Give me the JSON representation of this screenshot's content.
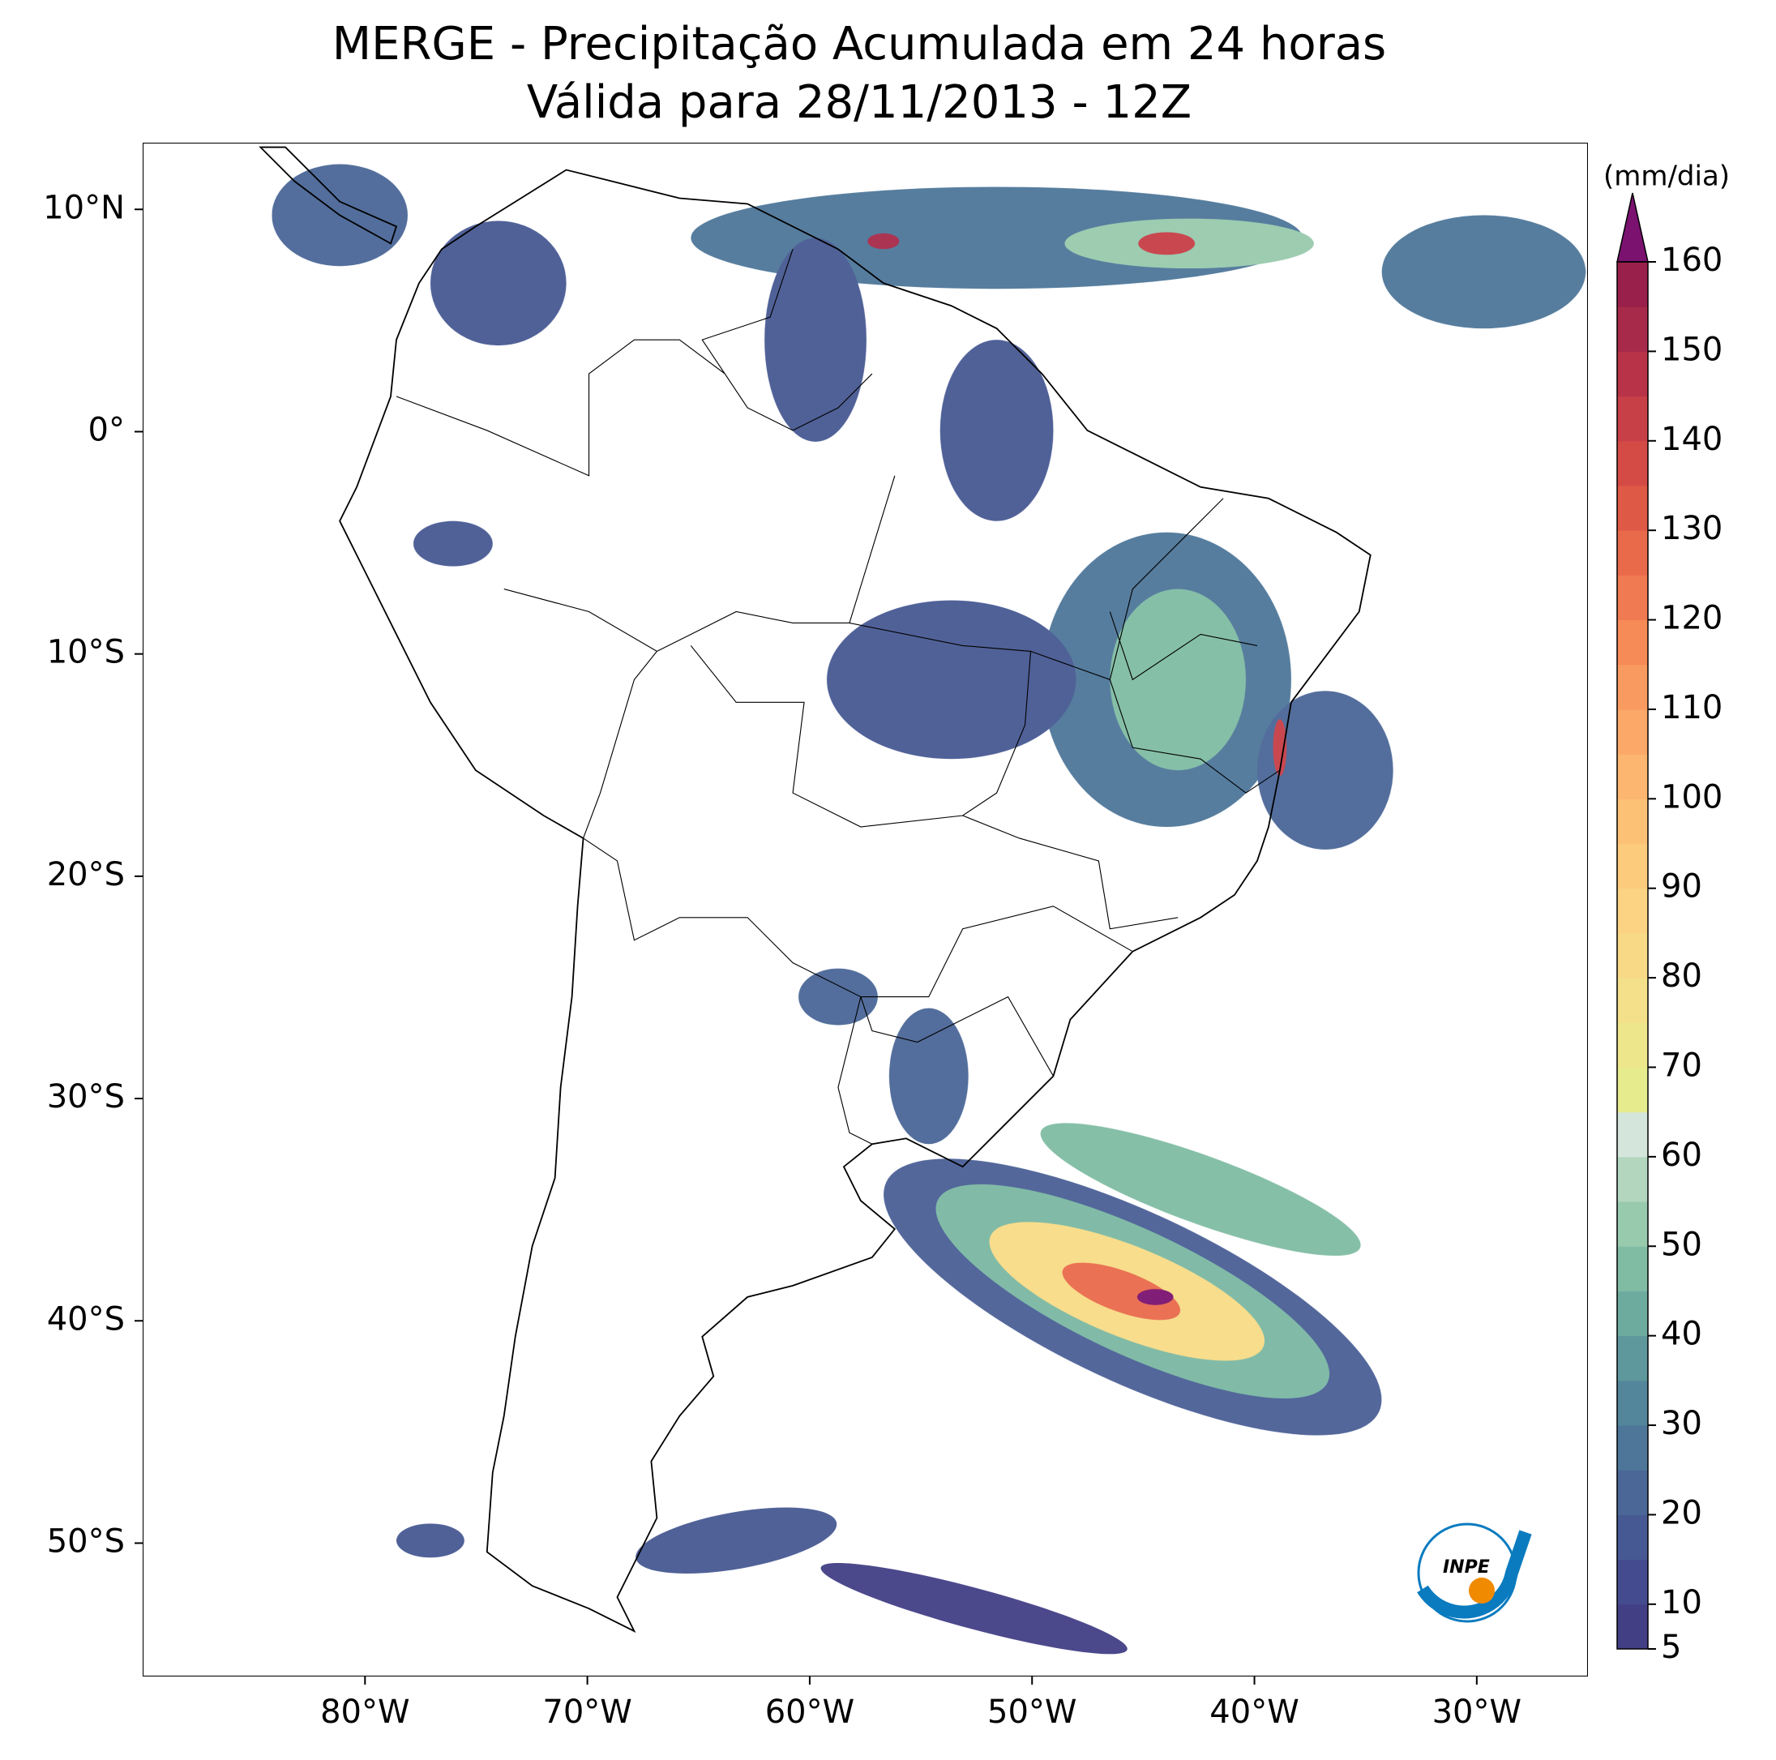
{
  "chart_data": {
    "type": "map",
    "title": "MERGE - Precipitação Acumulada em 24 horas",
    "subtitle": "Válida para 28/11/2013 - 12Z",
    "xlim": [
      -90,
      -25
    ],
    "ylim": [
      -56,
      13
    ],
    "xticks": [
      {
        "value": -80,
        "label": "80°W"
      },
      {
        "value": -70,
        "label": "70°W"
      },
      {
        "value": -60,
        "label": "60°W"
      },
      {
        "value": -50,
        "label": "50°W"
      },
      {
        "value": -40,
        "label": "40°W"
      },
      {
        "value": -30,
        "label": "30°W"
      }
    ],
    "yticks": [
      {
        "value": 10,
        "label": "10°N"
      },
      {
        "value": 0,
        "label": "0°"
      },
      {
        "value": -10,
        "label": "10°S"
      },
      {
        "value": -20,
        "label": "20°S"
      },
      {
        "value": -30,
        "label": "30°S"
      },
      {
        "value": -40,
        "label": "40°S"
      },
      {
        "value": -50,
        "label": "50°S"
      }
    ],
    "colorbar": {
      "label": "(mm/dia)",
      "lim": [
        5,
        160
      ],
      "ticks": [
        5,
        10,
        20,
        30,
        40,
        50,
        60,
        70,
        80,
        90,
        100,
        110,
        120,
        130,
        140,
        150,
        160
      ],
      "colors": [
        "#423f85",
        "#454b8f",
        "#475993",
        "#4a6797",
        "#4d7699",
        "#53869b",
        "#5e979c",
        "#6eab9f",
        "#80bca4",
        "#98caad",
        "#b3d6be",
        "#d4e6dc",
        "#e6ec8e",
        "#eee68b",
        "#f4e08a",
        "#f8da86",
        "#fbd383",
        "#fccb7c",
        "#fdc176",
        "#fdb66f",
        "#fca868",
        "#f99a61",
        "#f68b58",
        "#f07a51",
        "#e96a4b",
        "#df5a46",
        "#d44b46",
        "#c73f47",
        "#b83348",
        "#a82a4a",
        "#99204b"
      ],
      "extend_color": "#7b1270"
    },
    "logo": "INPE"
  }
}
